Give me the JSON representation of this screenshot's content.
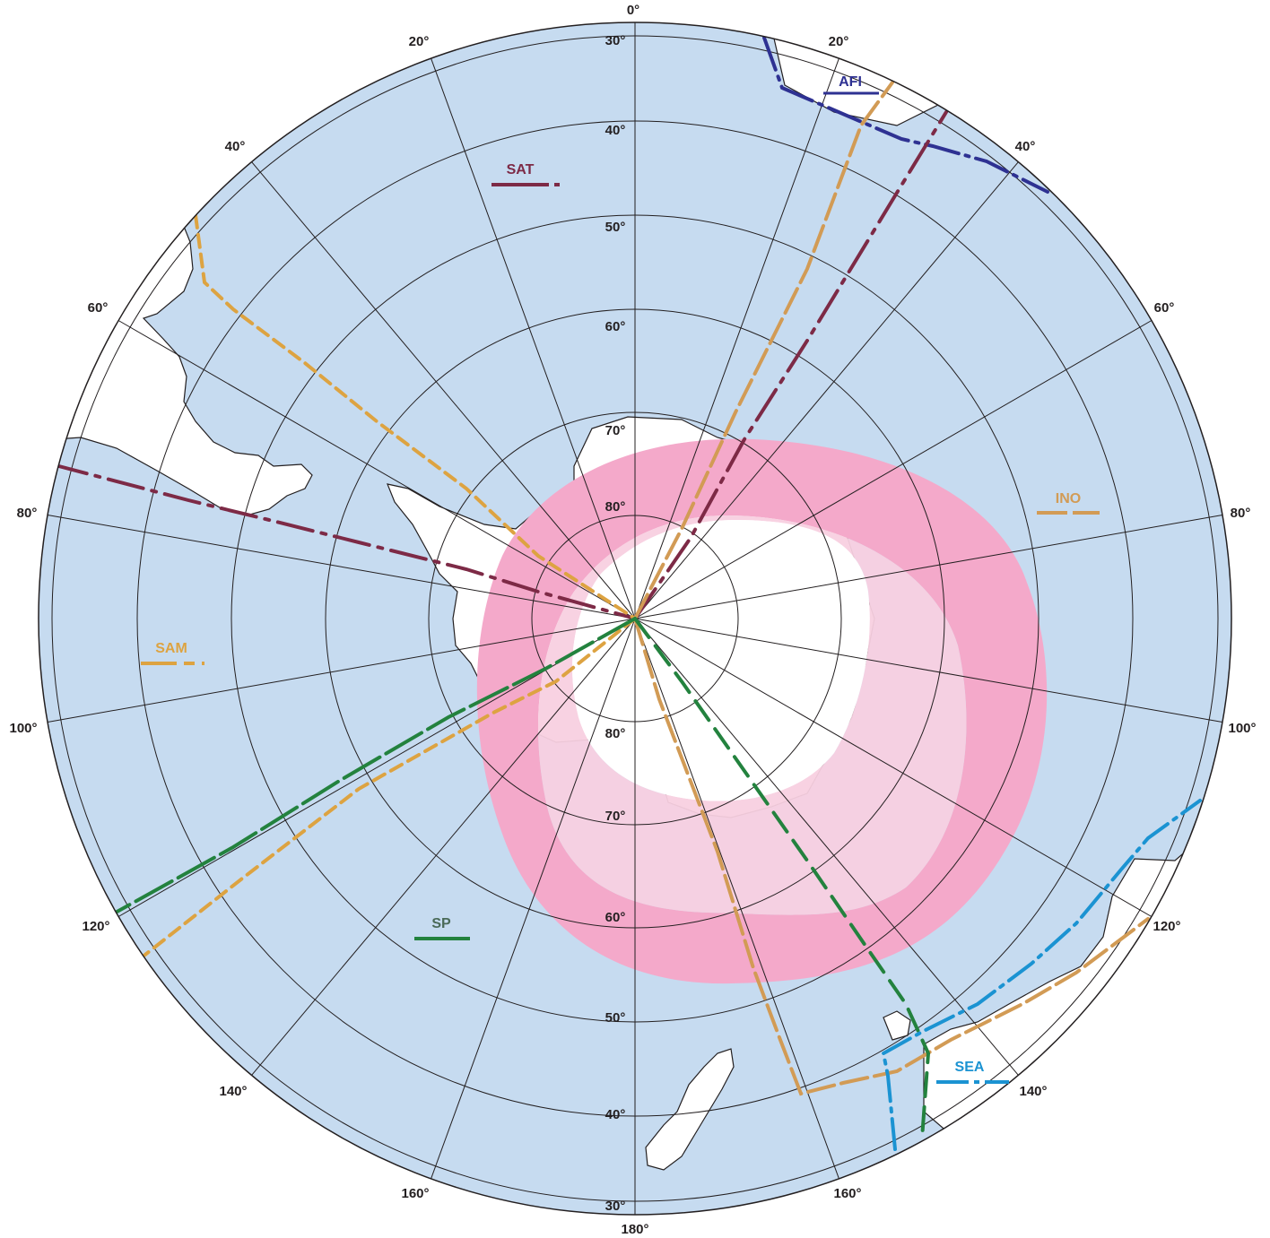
{
  "map": {
    "colors": {
      "ocean": "#c6dbf0",
      "land": "#ffffff",
      "coast": "#231f20",
      "grid": "#231f20",
      "ice_inner": "#f8d0e0",
      "ice_outer": "#f4a9ca"
    },
    "lon_labels": {
      "l0": "0°",
      "l20_left": "20°",
      "l20_right": "20°",
      "l40_left": "40°",
      "l40_right": "40°",
      "l60_left": "60°",
      "l60_right": "60°",
      "l80_left": "80°",
      "l80_right": "80°",
      "l100_left": "100°",
      "l100_right": "100°",
      "l120_left": "120°",
      "l120_right": "120°",
      "l140_left": "140°",
      "l140_right": "140°",
      "l160_left": "160°",
      "l160_right": "160°",
      "l180": "180°"
    },
    "lat_labels": {
      "top": [
        "30°",
        "40°",
        "50°",
        "60°",
        "70°",
        "80°"
      ],
      "bottom": [
        "80°",
        "70°",
        "60°",
        "50°",
        "40°",
        "30°"
      ]
    },
    "regions": [
      {
        "key": "afi",
        "label": "AFI",
        "color": "#2e3192"
      },
      {
        "key": "sat",
        "label": "SAT",
        "color": "#7d2a46"
      },
      {
        "key": "ino",
        "label": "INO",
        "color": "#d29b55"
      },
      {
        "key": "sam",
        "label": "SAM",
        "color": "#dda341"
      },
      {
        "key": "sp",
        "label": "SP",
        "color": "#23823e"
      },
      {
        "key": "sea",
        "label": "SEA",
        "color": "#1b93d2"
      }
    ]
  }
}
